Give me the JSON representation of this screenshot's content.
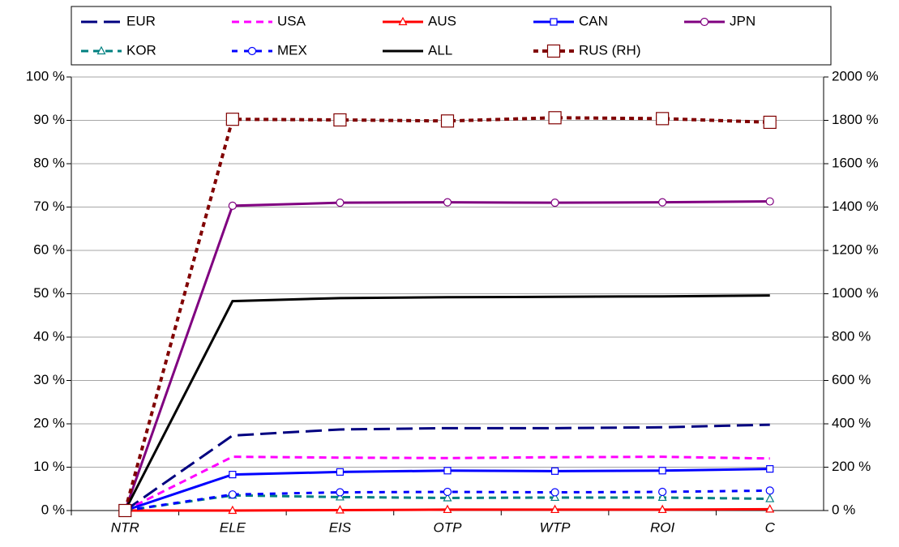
{
  "chart_data": {
    "type": "line",
    "categories": [
      "NTR",
      "ELE",
      "EIS",
      "OTP",
      "WTP",
      "ROI",
      "C"
    ],
    "ylim": [
      0,
      100
    ],
    "yticks": [
      {
        "value": 0,
        "label": "0 %"
      },
      {
        "value": 10,
        "label": "10 %"
      },
      {
        "value": 20,
        "label": "20 %"
      },
      {
        "value": 30,
        "label": "30 %"
      },
      {
        "value": 40,
        "label": "40 %"
      },
      {
        "value": 50,
        "label": "50 %"
      },
      {
        "value": 60,
        "label": "60 %"
      },
      {
        "value": 70,
        "label": "70 %"
      },
      {
        "value": 80,
        "label": "80 %"
      },
      {
        "value": 90,
        "label": "90 %"
      },
      {
        "value": 100,
        "label": "100 %"
      }
    ],
    "y2lim": [
      0,
      2000
    ],
    "y2ticks": [
      {
        "value": 0,
        "label": "0 %"
      },
      {
        "value": 200,
        "label": "200 %"
      },
      {
        "value": 400,
        "label": "400 %"
      },
      {
        "value": 600,
        "label": "600 %"
      },
      {
        "value": 800,
        "label": "800 %"
      },
      {
        "value": 1000,
        "label": "1000 %"
      },
      {
        "value": 1200,
        "label": "1200 %"
      },
      {
        "value": 1400,
        "label": "1400 %"
      },
      {
        "value": 1600,
        "label": "1600 %"
      },
      {
        "value": 1800,
        "label": "1800 %"
      },
      {
        "value": 2000,
        "label": "2000 %"
      }
    ],
    "grid": true,
    "legend": "top",
    "series": [
      {
        "name": "EUR",
        "color": "#000080",
        "dash": "20,8",
        "marker": "none",
        "values": [
          0,
          17.3,
          18.7,
          19,
          19,
          19.2,
          19.8
        ]
      },
      {
        "name": "USA",
        "color": "#ff00ff",
        "dash": "9,6",
        "marker": "none",
        "values": [
          0,
          12.4,
          12.2,
          12.1,
          12.3,
          12.4,
          12.0
        ]
      },
      {
        "name": "AUS",
        "color": "#ff0000",
        "dash": "none",
        "marker": "triangle",
        "values": [
          0,
          0,
          0.1,
          0.2,
          0.2,
          0.2,
          0.3
        ]
      },
      {
        "name": "CAN",
        "color": "#0000ff",
        "dash": "none",
        "marker": "square",
        "values": [
          0,
          8.3,
          8.9,
          9.2,
          9.1,
          9.2,
          9.6
        ]
      },
      {
        "name": "JPN",
        "color": "#800080",
        "dash": "none",
        "marker": "circle",
        "values": [
          0,
          70.3,
          71,
          71.1,
          71,
          71.1,
          71.3
        ]
      },
      {
        "name": "KOR",
        "color": "#008080",
        "dash": "9,6",
        "marker": "triangle",
        "values": [
          0,
          3.5,
          3.1,
          2.9,
          3.0,
          3.0,
          2.7
        ]
      },
      {
        "name": "MEX",
        "color": "#0000ff",
        "dash": "7,8",
        "marker": "circle",
        "values": [
          0,
          3.7,
          4.2,
          4.3,
          4.2,
          4.3,
          4.6
        ]
      },
      {
        "name": "ALL",
        "color": "#000000",
        "dash": "none",
        "marker": "none",
        "values": [
          0,
          48.3,
          49,
          49.2,
          49.3,
          49.4,
          49.6
        ]
      },
      {
        "name": "RUS (RH)",
        "color": "#800000",
        "dash": "6,5",
        "marker": "bigsquare",
        "axis": "y2",
        "values": [
          0,
          1805,
          1802,
          1797,
          1812,
          1808,
          1791
        ]
      }
    ]
  }
}
